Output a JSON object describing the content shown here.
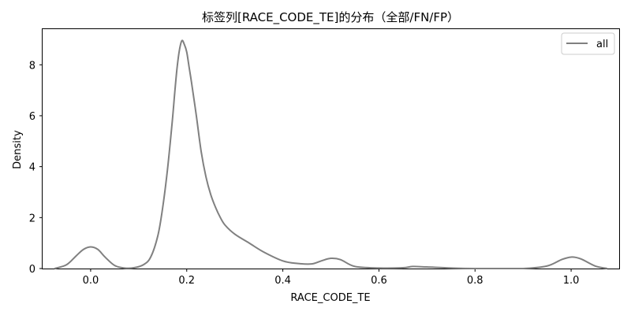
{
  "chart_data": {
    "type": "line",
    "title": "标签列[RACE_CODE_TE]的分布（全部/FN/FP）",
    "xlabel": "RACE_CODE_TE",
    "ylabel": "Density",
    "xlim": [
      -0.1,
      1.1
    ],
    "ylim": [
      0,
      9.4
    ],
    "x_ticks": [
      0.0,
      0.2,
      0.4,
      0.6,
      0.8,
      1.0
    ],
    "x_tick_labels": [
      "0.0",
      "0.2",
      "0.4",
      "0.6",
      "0.8",
      "1.0"
    ],
    "y_ticks": [
      0,
      2,
      4,
      6,
      8
    ],
    "y_tick_labels": [
      "0",
      "2",
      "4",
      "6",
      "8"
    ],
    "grid": false,
    "legend_position": "top-right",
    "series": [
      {
        "name": "all",
        "color": "#808080",
        "x": [
          -0.075,
          -0.05,
          -0.03,
          -0.015,
          0.0,
          0.015,
          0.03,
          0.05,
          0.07,
          0.09,
          0.11,
          0.125,
          0.14,
          0.15,
          0.16,
          0.17,
          0.175,
          0.18,
          0.185,
          0.19,
          0.195,
          0.2,
          0.205,
          0.21,
          0.22,
          0.23,
          0.24,
          0.25,
          0.26,
          0.27,
          0.28,
          0.3,
          0.33,
          0.36,
          0.4,
          0.43,
          0.46,
          0.48,
          0.5,
          0.52,
          0.55,
          0.6,
          0.65,
          0.67,
          0.7,
          0.75,
          0.8,
          0.9,
          0.95,
          0.98,
          1.0,
          1.02,
          1.05,
          1.075
        ],
        "y": [
          0.0,
          0.15,
          0.5,
          0.75,
          0.85,
          0.75,
          0.45,
          0.12,
          0.02,
          0.03,
          0.15,
          0.45,
          1.3,
          2.4,
          3.9,
          5.8,
          6.9,
          7.9,
          8.6,
          8.95,
          8.8,
          8.5,
          7.9,
          7.3,
          6.0,
          4.6,
          3.6,
          2.9,
          2.4,
          2.0,
          1.7,
          1.35,
          1.0,
          0.65,
          0.3,
          0.2,
          0.18,
          0.3,
          0.4,
          0.35,
          0.08,
          0.02,
          0.03,
          0.08,
          0.06,
          0.02,
          0.0,
          0.0,
          0.1,
          0.35,
          0.45,
          0.38,
          0.1,
          0.0
        ]
      }
    ]
  }
}
